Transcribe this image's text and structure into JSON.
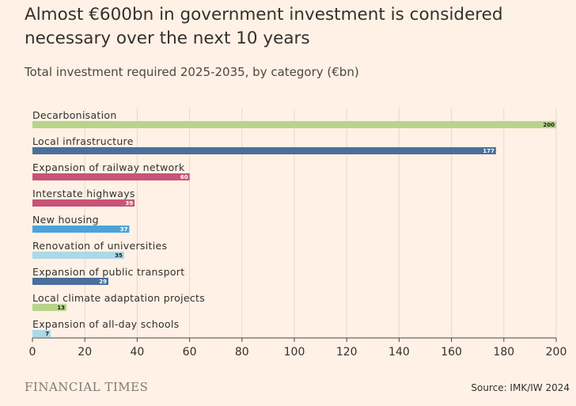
{
  "header": {
    "title": "Almost €600bn in government investment is considered necessary over the next 10 years",
    "subtitle": "Total investment required 2025-2035, by category (€bn)"
  },
  "footer": {
    "logo": "FINANCIAL TIMES",
    "source": "Source: IMK/IW 2024"
  },
  "colors": {
    "background": "#fff1e5",
    "green": "#b7d48a",
    "dark_blue": "#4a6f9c",
    "pink": "#c85479",
    "mid_blue": "#4ba3d9",
    "light_blue": "#acd8e8",
    "text": "#33302e",
    "axis": "#4a4744"
  },
  "chart_data": {
    "type": "bar",
    "orientation": "horizontal",
    "title": "Almost €600bn in government investment is considered necessary over the next 10 years",
    "subtitle": "Total investment required 2025-2035, by category (€bn)",
    "xlabel": "",
    "ylabel": "",
    "xlim": [
      0,
      200
    ],
    "x_ticks": [
      0,
      20,
      40,
      60,
      80,
      100,
      120,
      140,
      160,
      180,
      200
    ],
    "categories": [
      "Decarbonisation",
      "Local infrastructure",
      "Expansion of railway network",
      "Interstate highways",
      "New housing",
      "Renovation of universities",
      "Expansion of public transport",
      "Local climate adaptation projects",
      "Expansion of all-day schools"
    ],
    "values": [
      200,
      177,
      60,
      39,
      37,
      35,
      29,
      13,
      7
    ],
    "labels": [
      "200",
      "177",
      "60",
      "39",
      "37",
      "35",
      "29",
      "13",
      "7"
    ],
    "bar_colors": [
      "green",
      "dark_blue",
      "pink",
      "pink",
      "mid_blue",
      "light_blue",
      "dark_blue",
      "green",
      "light_blue"
    ],
    "label_colors": [
      "dark",
      "light",
      "light",
      "light",
      "light",
      "dark",
      "light",
      "dark",
      "dark"
    ]
  }
}
